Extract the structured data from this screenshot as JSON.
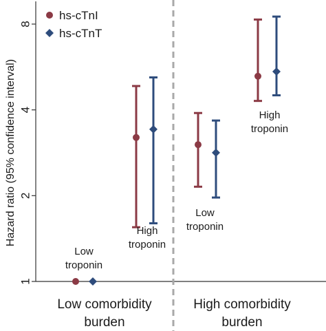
{
  "chart_data": {
    "type": "scatter",
    "ylabel": "Hazard ratio (95% confidence interval)",
    "yscale": "log2",
    "ylim": [
      0.95,
      11
    ],
    "yticks": [
      1,
      2,
      4,
      8
    ],
    "grid": false,
    "legend_position": "top-left",
    "groups": [
      "Low comorbidity burden",
      "High comorbidity burden"
    ],
    "group_label_lines": [
      [
        "Low comorbidity",
        "burden"
      ],
      [
        "High comorbidity",
        "burden"
      ]
    ],
    "colors": {
      "hs-cTnI": "#8b3a45",
      "hs-cTnT": "#2e4c7c",
      "axis": "#333333",
      "divider": "#a8a8a8"
    },
    "series": [
      {
        "name": "hs-cTnI",
        "marker": "circle",
        "points": [
          {
            "group": "Low comorbidity burden",
            "category": "Low troponin",
            "hr": 1.0,
            "lo": null,
            "hi": null
          },
          {
            "group": "Low comorbidity burden",
            "category": "High troponin",
            "hr": 3.2,
            "lo": 1.55,
            "hi": 4.85
          },
          {
            "group": "High comorbidity burden",
            "category": "Low troponin",
            "hr": 3.02,
            "lo": 2.15,
            "hi": 3.9
          },
          {
            "group": "High comorbidity burden",
            "category": "High troponin",
            "hr": 5.25,
            "lo": 4.3,
            "hi": 8.3
          }
        ]
      },
      {
        "name": "hs-cTnT",
        "marker": "diamond",
        "points": [
          {
            "group": "Low comorbidity burden",
            "category": "Low troponin",
            "hr": 1.0,
            "lo": null,
            "hi": null
          },
          {
            "group": "Low comorbidity burden",
            "category": "High troponin",
            "hr": 3.42,
            "lo": 1.6,
            "hi": 5.2
          },
          {
            "group": "High comorbidity burden",
            "category": "Low troponin",
            "hr": 2.83,
            "lo": 1.97,
            "hi": 3.67
          },
          {
            "group": "High comorbidity burden",
            "category": "High troponin",
            "hr": 5.45,
            "lo": 4.5,
            "hi": 8.5
          }
        ]
      }
    ],
    "annotations": [
      {
        "lines": [
          "Low",
          "troponin"
        ],
        "group": "Low comorbidity burden",
        "category": "Low troponin"
      },
      {
        "lines": [
          "High",
          "troponin"
        ],
        "group": "Low comorbidity burden",
        "category": "High troponin"
      },
      {
        "lines": [
          "Low",
          "troponin"
        ],
        "group": "High comorbidity burden",
        "category": "Low troponin"
      },
      {
        "lines": [
          "High",
          "troponin"
        ],
        "group": "High comorbidity burden",
        "category": "High troponin"
      }
    ]
  }
}
